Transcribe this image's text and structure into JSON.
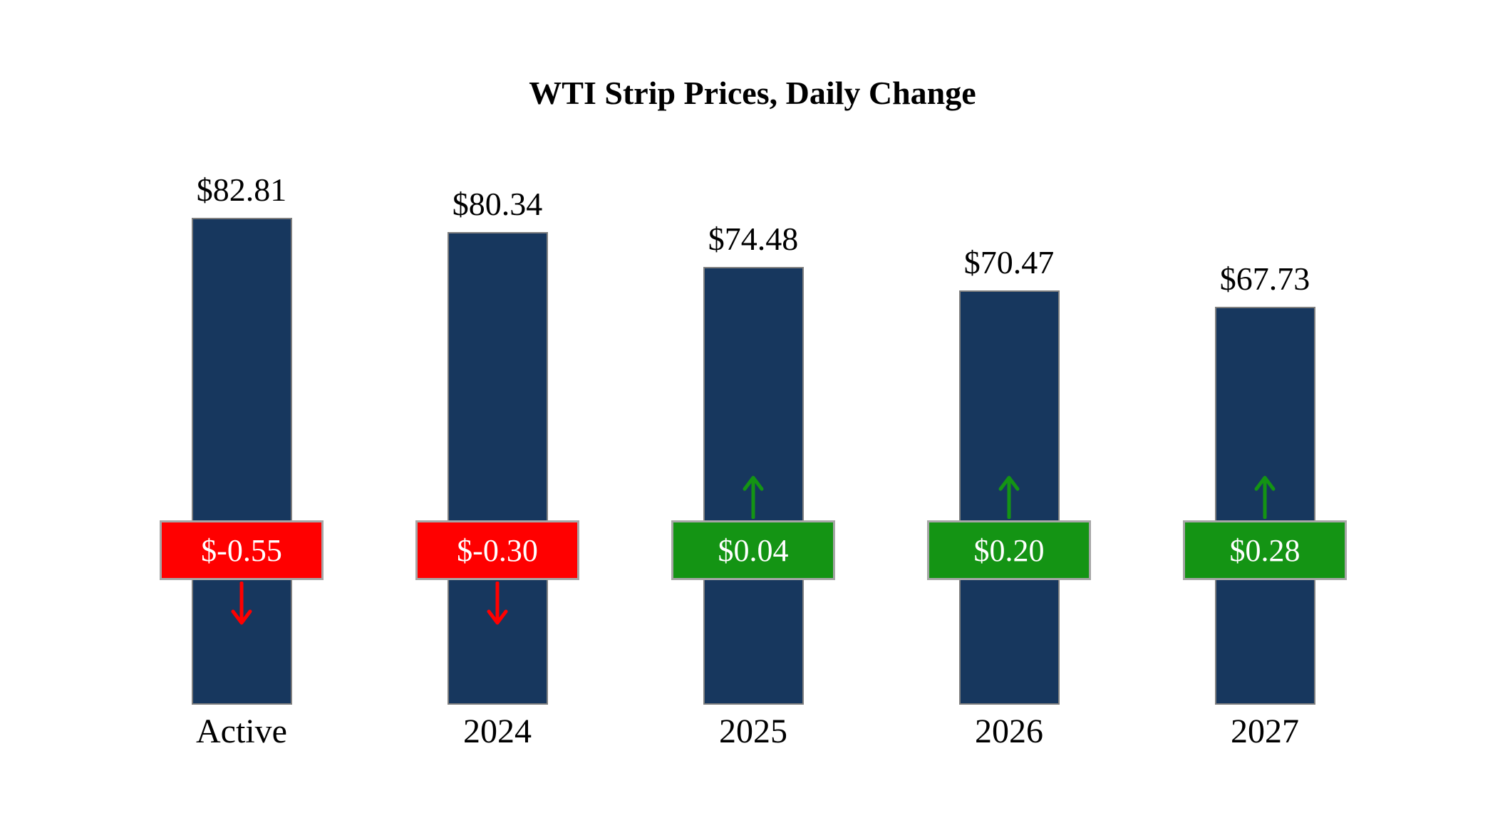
{
  "chart_data": {
    "type": "bar",
    "title": "WTI Strip Prices, Daily Change",
    "categories": [
      "Active",
      "2024",
      "2025",
      "2026",
      "2027"
    ],
    "series": [
      {
        "name": "WTI Strip Price",
        "values": [
          82.81,
          80.34,
          74.48,
          70.47,
          67.73
        ]
      },
      {
        "name": "Daily Change",
        "values": [
          -0.55,
          -0.3,
          0.04,
          0.2,
          0.28
        ]
      }
    ],
    "value_labels": [
      "$82.81",
      "$80.34",
      "$74.48",
      "$70.47",
      "$67.73"
    ],
    "change_labels": [
      "$-0.55",
      "$-0.30",
      "$0.04",
      "$0.20",
      "$0.28"
    ],
    "xlabel": "",
    "ylabel": "",
    "ylim": [
      0,
      90
    ],
    "grid": false,
    "legend_position": "none"
  },
  "colors": {
    "bar": "#17375E",
    "negative": "#FF0000",
    "positive": "#149414",
    "badge_border": "#A6A6A6",
    "text": "#000000"
  }
}
